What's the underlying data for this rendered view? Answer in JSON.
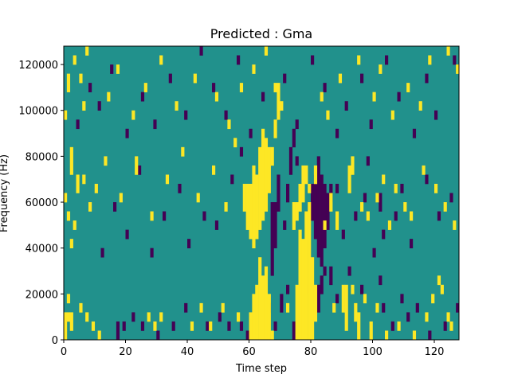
{
  "chart_data": {
    "type": "heatmap",
    "title": "Predicted : Gma",
    "xlabel": "Time step",
    "ylabel": "Frequency (Hz)",
    "xlim": [
      0,
      128
    ],
    "ylim": [
      0,
      128000
    ],
    "x_ticks": [
      0,
      20,
      40,
      60,
      80,
      100,
      120
    ],
    "y_ticks": [
      0,
      20000,
      40000,
      60000,
      80000,
      100000,
      120000
    ],
    "x_tick_labels": [
      "0",
      "20",
      "40",
      "60",
      "80",
      "100",
      "120"
    ],
    "y_tick_labels": [
      "0",
      "20000",
      "40000",
      "60000",
      "80000",
      "100000",
      "120000"
    ],
    "colormap": "viridis",
    "levels": {
      "low": -1,
      "mid": 0,
      "high": 1
    },
    "colors": {
      "background": "#21918c",
      "low": "#440154",
      "high": "#fde725"
    },
    "grid": false,
    "legend": "none",
    "time_bins": 128,
    "frequency_bins": 32,
    "bin_height_hz": 4000,
    "cells_high": [
      [
        0,
        0,
        1
      ],
      [
        0,
        1,
        2
      ],
      [
        1,
        2,
        1
      ],
      [
        2,
        1,
        2
      ],
      [
        1,
        4,
        1
      ],
      [
        5,
        3,
        1
      ],
      [
        7,
        2,
        1
      ],
      [
        9,
        1,
        1
      ],
      [
        11,
        0,
        1
      ],
      [
        27,
        2,
        1
      ],
      [
        29,
        1,
        1
      ],
      [
        31,
        2,
        1
      ],
      [
        41,
        1,
        1
      ],
      [
        44,
        3,
        1
      ],
      [
        47,
        1,
        1
      ],
      [
        51,
        3,
        1
      ],
      [
        56,
        2,
        1
      ],
      [
        60,
        0,
        3
      ],
      [
        61,
        0,
        5
      ],
      [
        62,
        0,
        6
      ],
      [
        63,
        0,
        9
      ],
      [
        64,
        0,
        7
      ],
      [
        65,
        0,
        8
      ],
      [
        66,
        0,
        5
      ],
      [
        67,
        0,
        1
      ],
      [
        72,
        3,
        1
      ],
      [
        75,
        0,
        6
      ],
      [
        76,
        0,
        12
      ],
      [
        77,
        0,
        11
      ],
      [
        78,
        0,
        14
      ],
      [
        79,
        0,
        15
      ],
      [
        80,
        0,
        9
      ],
      [
        81,
        2,
        4
      ],
      [
        87,
        3,
        1
      ],
      [
        90,
        3,
        3
      ],
      [
        91,
        1,
        5
      ],
      [
        93,
        5,
        1
      ],
      [
        94,
        2,
        2
      ],
      [
        95,
        0,
        3
      ],
      [
        97,
        4,
        1
      ],
      [
        99,
        0,
        2
      ],
      [
        101,
        3,
        1
      ],
      [
        104,
        0,
        1
      ],
      [
        108,
        1,
        1
      ],
      [
        113,
        0,
        1
      ],
      [
        117,
        2,
        1
      ],
      [
        119,
        4,
        1
      ],
      [
        121,
        6,
        1
      ],
      [
        122,
        5,
        1
      ],
      [
        124,
        2,
        1
      ],
      [
        125,
        1,
        1
      ],
      [
        0,
        15,
        1
      ],
      [
        1,
        13,
        1
      ],
      [
        2,
        10,
        1
      ],
      [
        2,
        18,
        3
      ],
      [
        3,
        12,
        1
      ],
      [
        4,
        16,
        2
      ],
      [
        6,
        17,
        1
      ],
      [
        8,
        14,
        1
      ],
      [
        10,
        16,
        1
      ],
      [
        13,
        19,
        1
      ],
      [
        18,
        15,
        1
      ],
      [
        23,
        18,
        2
      ],
      [
        28,
        13,
        1
      ],
      [
        33,
        17,
        1
      ],
      [
        38,
        20,
        1
      ],
      [
        43,
        15,
        1
      ],
      [
        48,
        18,
        1
      ],
      [
        52,
        14,
        1
      ],
      [
        55,
        21,
        1
      ],
      [
        58,
        14,
        3
      ],
      [
        59,
        12,
        5
      ],
      [
        60,
        11,
        6
      ],
      [
        61,
        10,
        9
      ],
      [
        62,
        11,
        7
      ],
      [
        63,
        12,
        9
      ],
      [
        64,
        13,
        10
      ],
      [
        65,
        14,
        8
      ],
      [
        66,
        16,
        5
      ],
      [
        67,
        19,
        2
      ],
      [
        68,
        22,
        2
      ],
      [
        69,
        24,
        4
      ],
      [
        74,
        12,
        3
      ],
      [
        75,
        13,
        2
      ],
      [
        76,
        14,
        3
      ],
      [
        77,
        15,
        4
      ],
      [
        78,
        17,
        2
      ],
      [
        79,
        16,
        1
      ],
      [
        81,
        17,
        2
      ],
      [
        84,
        12,
        1
      ],
      [
        86,
        14,
        2
      ],
      [
        88,
        12,
        2
      ],
      [
        92,
        16,
        3
      ],
      [
        93,
        18,
        2
      ],
      [
        96,
        14,
        1
      ],
      [
        98,
        13,
        1
      ],
      [
        101,
        15,
        1
      ],
      [
        103,
        17,
        1
      ],
      [
        105,
        12,
        1
      ],
      [
        107,
        16,
        1
      ],
      [
        110,
        14,
        1
      ],
      [
        112,
        13,
        1
      ],
      [
        116,
        18,
        1
      ],
      [
        120,
        16,
        1
      ],
      [
        123,
        14,
        1
      ],
      [
        126,
        12,
        1
      ],
      [
        0,
        24,
        1
      ],
      [
        1,
        27,
        2
      ],
      [
        3,
        30,
        1
      ],
      [
        5,
        28,
        1
      ],
      [
        6,
        25,
        1
      ],
      [
        7,
        31,
        1
      ],
      [
        14,
        26,
        1
      ],
      [
        17,
        29,
        1
      ],
      [
        22,
        24,
        1
      ],
      [
        26,
        27,
        1
      ],
      [
        31,
        30,
        1
      ],
      [
        36,
        25,
        1
      ],
      [
        42,
        28,
        1
      ],
      [
        49,
        26,
        1
      ],
      [
        53,
        23,
        1
      ],
      [
        57,
        27,
        1
      ],
      [
        61,
        29,
        1
      ],
      [
        65,
        31,
        1
      ],
      [
        68,
        27,
        1
      ],
      [
        70,
        25,
        1
      ],
      [
        83,
        26,
        1
      ],
      [
        85,
        24,
        1
      ],
      [
        89,
        28,
        1
      ],
      [
        95,
        30,
        1
      ],
      [
        100,
        26,
        1
      ],
      [
        102,
        29,
        1
      ],
      [
        106,
        24,
        1
      ],
      [
        111,
        27,
        1
      ],
      [
        115,
        25,
        1
      ],
      [
        118,
        30,
        1
      ],
      [
        124,
        31,
        1
      ],
      [
        127,
        29,
        1
      ]
    ],
    "cells_low": [
      [
        17,
        0,
        2
      ],
      [
        19,
        1,
        1
      ],
      [
        22,
        2,
        1
      ],
      [
        25,
        1,
        1
      ],
      [
        30,
        0,
        1
      ],
      [
        35,
        1,
        1
      ],
      [
        39,
        3,
        1
      ],
      [
        46,
        1,
        1
      ],
      [
        50,
        2,
        1
      ],
      [
        53,
        1,
        1
      ],
      [
        57,
        1,
        1
      ],
      [
        59,
        0,
        1
      ],
      [
        66,
        3,
        1
      ],
      [
        68,
        1,
        1
      ],
      [
        70,
        3,
        2
      ],
      [
        72,
        5,
        1
      ],
      [
        74,
        0,
        2
      ],
      [
        76,
        2,
        1
      ],
      [
        77,
        3,
        1
      ],
      [
        78,
        5,
        1
      ],
      [
        82,
        3,
        3
      ],
      [
        83,
        5,
        2
      ],
      [
        84,
        7,
        1
      ],
      [
        86,
        6,
        2
      ],
      [
        88,
        4,
        1
      ],
      [
        92,
        7,
        1
      ],
      [
        96,
        5,
        1
      ],
      [
        100,
        9,
        1
      ],
      [
        102,
        6,
        1
      ],
      [
        103,
        3,
        1
      ],
      [
        106,
        1,
        1
      ],
      [
        109,
        4,
        1
      ],
      [
        111,
        2,
        1
      ],
      [
        114,
        3,
        1
      ],
      [
        118,
        0,
        1
      ],
      [
        123,
        1,
        1
      ],
      [
        127,
        3,
        1
      ],
      [
        12,
        9,
        1
      ],
      [
        16,
        14,
        1
      ],
      [
        20,
        11,
        1
      ],
      [
        24,
        18,
        1
      ],
      [
        28,
        9,
        1
      ],
      [
        32,
        13,
        1
      ],
      [
        37,
        16,
        1
      ],
      [
        40,
        10,
        1
      ],
      [
        45,
        13,
        1
      ],
      [
        49,
        12,
        1
      ],
      [
        54,
        17,
        1
      ],
      [
        57,
        20,
        1
      ],
      [
        67,
        7,
        8
      ],
      [
        68,
        10,
        5
      ],
      [
        69,
        14,
        4
      ],
      [
        71,
        12,
        1
      ],
      [
        72,
        15,
        2
      ],
      [
        73,
        18,
        3
      ],
      [
        74,
        21,
        2
      ],
      [
        75,
        19,
        1
      ],
      [
        79,
        14,
        1
      ],
      [
        80,
        13,
        4
      ],
      [
        81,
        11,
        7
      ],
      [
        82,
        9,
        11
      ],
      [
        83,
        8,
        10
      ],
      [
        84,
        10,
        7
      ],
      [
        85,
        12,
        4
      ],
      [
        86,
        15,
        2
      ],
      [
        88,
        16,
        1
      ],
      [
        90,
        11,
        1
      ],
      [
        94,
        13,
        1
      ],
      [
        97,
        15,
        1
      ],
      [
        98,
        19,
        1
      ],
      [
        102,
        14,
        2
      ],
      [
        103,
        11,
        1
      ],
      [
        107,
        13,
        1
      ],
      [
        109,
        16,
        1
      ],
      [
        112,
        10,
        1
      ],
      [
        117,
        17,
        1
      ],
      [
        121,
        13,
        1
      ],
      [
        125,
        15,
        1
      ],
      [
        4,
        23,
        1
      ],
      [
        8,
        27,
        1
      ],
      [
        11,
        25,
        1
      ],
      [
        15,
        29,
        1
      ],
      [
        20,
        22,
        1
      ],
      [
        25,
        26,
        1
      ],
      [
        29,
        23,
        1
      ],
      [
        34,
        28,
        1
      ],
      [
        39,
        24,
        1
      ],
      [
        44,
        31,
        1
      ],
      [
        48,
        27,
        1
      ],
      [
        52,
        24,
        1
      ],
      [
        56,
        30,
        1
      ],
      [
        60,
        22,
        1
      ],
      [
        64,
        26,
        1
      ],
      [
        71,
        28,
        1
      ],
      [
        75,
        23,
        1
      ],
      [
        80,
        30,
        1
      ],
      [
        84,
        27,
        1
      ],
      [
        88,
        22,
        1
      ],
      [
        91,
        25,
        1
      ],
      [
        96,
        28,
        1
      ],
      [
        99,
        23,
        1
      ],
      [
        104,
        30,
        1
      ],
      [
        108,
        26,
        1
      ],
      [
        113,
        22,
        1
      ],
      [
        117,
        28,
        1
      ],
      [
        120,
        24,
        1
      ],
      [
        126,
        30,
        1
      ]
    ]
  }
}
